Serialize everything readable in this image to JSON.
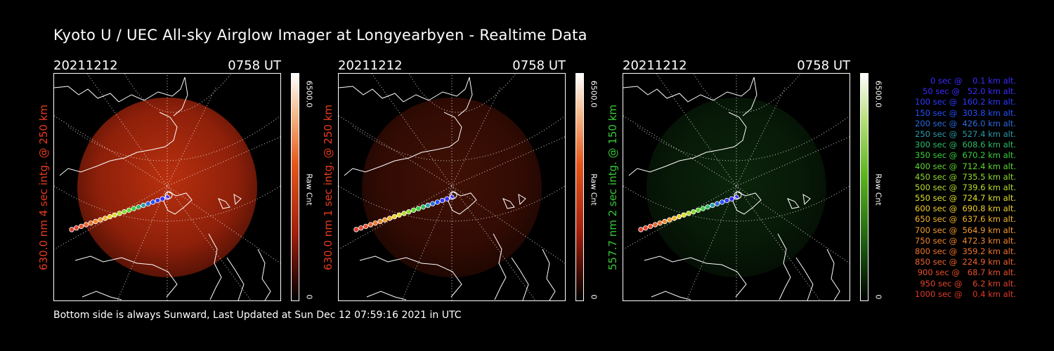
{
  "title": "Kyoto U / UEC All-sky Airglow Imager at Longyearbyen - Realtime Data",
  "footer": "Bottom side is always Sunward, Last Updated at Sun Dec 12 07:59:16 2021 in UTC",
  "panels": [
    {
      "date": "20211212",
      "time": "0758 UT",
      "label": "630.0 nm 4 sec intg. @ 250 km",
      "label_color": "#e83a1e",
      "cb_max": "6500.0",
      "cb_min": "0",
      "cb_unit": "Raw Cnt",
      "tint": "red",
      "brightness": 1.0
    },
    {
      "date": "20211212",
      "time": "0758 UT",
      "label": "630.0 nm 1 sec intg. @ 250 km",
      "label_color": "#e83a1e",
      "cb_max": "6500.0",
      "cb_min": "0",
      "cb_unit": "Raw Cnt",
      "tint": "red",
      "brightness": 0.35
    },
    {
      "date": "20211212",
      "time": "0758 UT",
      "label": "557.7 nm 2 sec intg. @ 150 km",
      "label_color": "#35c935",
      "cb_max": "6500.0",
      "cb_min": "0",
      "cb_unit": "Raw Cnt",
      "tint": "green",
      "brightness": 0.4
    }
  ],
  "legend": [
    {
      "text": "0 sec @    0.1 km alt.",
      "color": "#3a2bff"
    },
    {
      "text": "50 sec @   52.0 km alt.",
      "color": "#3a2bff"
    },
    {
      "text": "100 sec @  160.2 km alt.",
      "color": "#2d39ff"
    },
    {
      "text": "150 sec @  303.8 km alt.",
      "color": "#2450ff"
    },
    {
      "text": "200 sec @  426.0 km alt.",
      "color": "#2a6ae0"
    },
    {
      "text": "250 sec @  527.4 km alt.",
      "color": "#2a9aaa"
    },
    {
      "text": "300 sec @  608.6 km alt.",
      "color": "#2bbd6a"
    },
    {
      "text": "350 sec @  670.2 km alt.",
      "color": "#38d03a"
    },
    {
      "text": "400 sec @  712.4 km alt.",
      "color": "#5fd630"
    },
    {
      "text": "450 sec @  735.5 km alt.",
      "color": "#8edb2c"
    },
    {
      "text": "500 sec @  739.6 km alt.",
      "color": "#b6de2a"
    },
    {
      "text": "550 sec @  724.7 km alt.",
      "color": "#dde02a"
    },
    {
      "text": "600 sec @  690.8 km alt.",
      "color": "#f0d12a"
    },
    {
      "text": "650 sec @  637.6 km alt.",
      "color": "#f4b52a"
    },
    {
      "text": "700 sec @  564.9 km alt.",
      "color": "#f39a2a"
    },
    {
      "text": "750 sec @  472.3 km alt.",
      "color": "#f2862a"
    },
    {
      "text": "800 sec @  359.2 km alt.",
      "color": "#f0742a"
    },
    {
      "text": "850 sec @  224.9 km alt.",
      "color": "#ec622a"
    },
    {
      "text": "900 sec @   68.7 km alt.",
      "color": "#e8502a"
    },
    {
      "text": "950 sec @    6.2 km alt.",
      "color": "#e4442a"
    },
    {
      "text": "1000 sec @    0.4 km alt.",
      "color": "#e0382a"
    }
  ]
}
